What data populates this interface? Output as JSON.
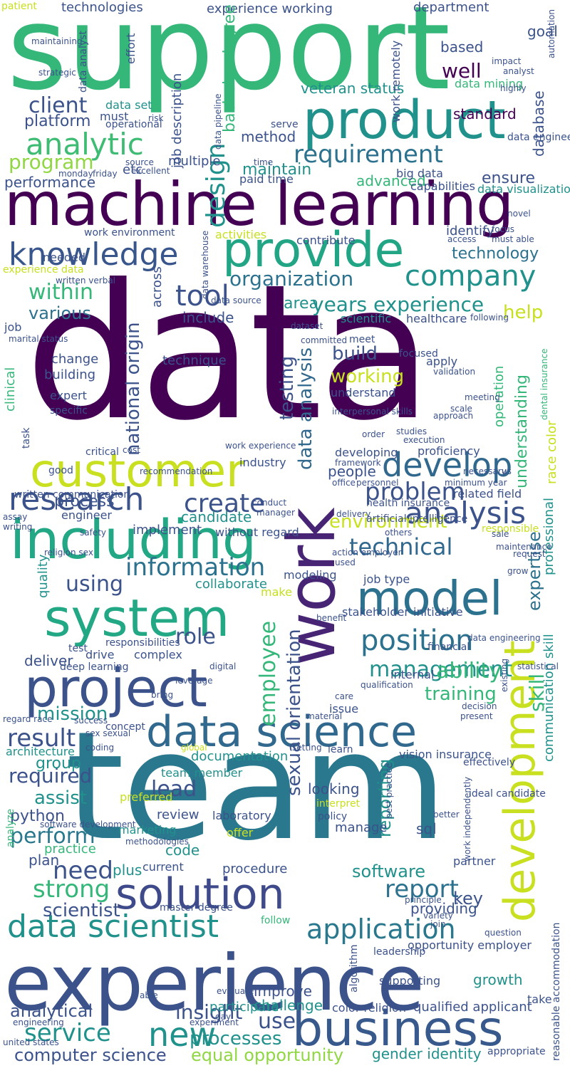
{
  "palette": {
    "dark_purple": "#440154",
    "indigo": "#3b528b",
    "blue": "#31688e",
    "teal": "#21918c",
    "green": "#35b779",
    "lime": "#90d743",
    "yellow": "#c8e020"
  },
  "words": {
    "data": "data",
    "team": "team",
    "support": "support",
    "experience": "experience",
    "machine_learning": "machine learning",
    "work": "work",
    "product": "product",
    "development": "development",
    "provide": "provide",
    "customer": "customer",
    "including": "including",
    "system": "system",
    "project": "project",
    "data_science": "data science",
    "solution": "solution",
    "business": "business",
    "knowledge": "knowledge",
    "model": "model",
    "analytic": "analytic",
    "research": "research",
    "develop": "develop",
    "company": "company",
    "analysis": "analysis",
    "data_scientist": "data scientist",
    "application": "application",
    "new": "new",
    "requirement": "requirement",
    "design": "design",
    "tool": "tool",
    "years_experience": "years experience",
    "position": "position",
    "management": "management",
    "information": "information",
    "technical": "technical",
    "result": "result",
    "strong": "strong",
    "perform": "perform",
    "need": "need",
    "report": "report",
    "service": "service",
    "computer_science": "computer science",
    "equal_opportunity": "equal opportunity",
    "processes": "processes",
    "mission": "mission",
    "lead": "lead",
    "create": "create",
    "problem": "problem",
    "environment": "environment",
    "organization": "organization",
    "program": "program",
    "client": "client",
    "platform": "platform",
    "performance": "performance",
    "within": "within",
    "various": "various",
    "technology": "technology",
    "maintain": "maintain",
    "method": "method",
    "advanced": "advanced",
    "ensure": "ensure",
    "build": "build",
    "working": "working",
    "testing": "testing",
    "data_analysis": "data analysis",
    "national_origin": "national origin",
    "sexual_orientation": "sexual orientation",
    "employee": "employee",
    "expertise": "expertise",
    "professional": "professional",
    "skill": "skill",
    "ability": "ability",
    "training": "training",
    "reporting": "reporting",
    "software": "software",
    "scientist": "scientist",
    "analytical": "analytical",
    "insight": "insight",
    "use": "use",
    "improve": "improve",
    "challenge": "challenge",
    "participate": "participate",
    "qualified_applicant": "qualified applicant",
    "gender_identity": "gender identity",
    "opportunity_employer": "opportunity employer",
    "growth": "growth",
    "key": "key",
    "providing": "providing",
    "python": "python",
    "required": "required",
    "assist": "assist",
    "group": "group",
    "architecture": "architecture",
    "deliver": "deliver",
    "role": "role",
    "quality": "quality",
    "using": "using",
    "process": "process",
    "candidate": "candidate",
    "implement": "implement",
    "collaborate": "collaborate",
    "documentation": "documentation",
    "team_member": "team member",
    "review": "review",
    "marketing": "marketing",
    "code": "code",
    "plan": "plan",
    "practice": "practice",
    "procedure": "procedure",
    "plus": "plus",
    "current": "current",
    "looking": "looking",
    "manage": "manage",
    "sql": "sql",
    "partner": "partner",
    "understanding": "understanding",
    "help": "help",
    "operation": "operation",
    "include": "include",
    "area": "area",
    "technique": "technique",
    "building": "building",
    "change": "change",
    "expert": "expert",
    "across": "across",
    "standard": "standard",
    "well": "well",
    "based": "based",
    "department": "department",
    "experience_working": "experience working",
    "technologies": "technologies",
    "patient": "patient",
    "goal": "goal",
    "veteran_status": "veteran status",
    "work_remotely": "work remotely",
    "bachelor_degree": "bachelor degree",
    "database": "database",
    "data_mining": "data mining",
    "data_set": "data set",
    "must": "must",
    "job_description": "job description",
    "etc": "etc",
    "multiple": "multiple",
    "paid_time": "paid time",
    "value": "value",
    "capabilities": "capabilities",
    "big_data": "big data",
    "data_visualization": "data visualization",
    "data_engineer": "data engineer",
    "identify": "identify",
    "contribute": "contribute",
    "needed": "needed",
    "activities": "activities",
    "work_environment": "work environment",
    "experience_data": "experience data",
    "scientific": "scientific",
    "healthcare": "healthcare",
    "field": "field",
    "dataset": "dataset",
    "committed": "committed",
    "meet": "meet",
    "focused": "focused",
    "apply": "apply",
    "understand": "understand",
    "health_insurance": "health insurance",
    "related_field": "related field",
    "industry": "industry",
    "developing": "developing",
    "people": "people",
    "proficiency": "proficiency",
    "without_regard": "without regard",
    "responsibilities": "responsibilities",
    "complex": "complex",
    "drive": "drive",
    "deep_learning": "deep learning",
    "test": "test",
    "specific": "specific",
    "clinical": "clinical",
    "job": "job",
    "task": "task",
    "good": "good",
    "critical": "critical",
    "financial": "financial",
    "internal": "internal",
    "stakeholder": "stakeholder",
    "initiative": "initiative",
    "job_type": "job type",
    "benefit": "benefit",
    "modeling": "modeling",
    "make": "make",
    "issue": "issue",
    "learn": "learn",
    "vision_insurance": "vision insurance",
    "ideal_candidate": "ideal candidate",
    "effectively": "effectively",
    "laboratory": "laboratory",
    "offer": "offer",
    "preferred": "preferred",
    "interpret": "interpret",
    "policy": "policy",
    "best_practice": "best practice",
    "master_degree": "master degree",
    "follow": "follow",
    "leadership": "leadership",
    "algorithm": "algorithm",
    "supporting": "supporting",
    "color_religion": "color religion",
    "appropriate": "appropriate",
    "reasonable_accommodation": "reasonable accommodation",
    "united_states": "united states",
    "engineering": "engineering",
    "communication_skill": "communication skill",
    "race_color": "race color",
    "data_engineering": "data engineering",
    "written_communication": "written communication",
    "artificial_intelligence": "artificial intelligence",
    "responsible": "responsible",
    "related": "related",
    "engineer": "engineer",
    "safety": "safety",
    "work_independently": "work independently",
    "software_development": "software development",
    "religion_sex": "religion sex",
    "regard_race": "regard race",
    "concept": "concept",
    "success": "success",
    "analyze": "analyze",
    "methodologies": "methodologies",
    "effort": "effort",
    "maintaining": "maintaining",
    "strategic": "strategic",
    "risk": "risk",
    "operational": "operational",
    "source": "source",
    "excellent": "excellent",
    "monday": "monday",
    "friday": "friday",
    "data_pipeline": "data pipeline",
    "serve": "serve",
    "data_analyst": "data analyst",
    "data_source": "data source",
    "data_warehouse": "data warehouse",
    "dental_insurance": "dental insurance",
    "marital_status": "marital status",
    "written_verbal": "written verbal",
    "interpersonal_skills": "interpersonal skills",
    "minimum_year": "minimum year",
    "validation": "validation",
    "execution": "execution",
    "studies": "studies",
    "scale": "scale",
    "meeting": "meeting",
    "focus": "focus",
    "must_able": "must able",
    "access": "access",
    "novel": "novel",
    "highly": "highly",
    "impact": "impact",
    "analyst": "analyst",
    "automation": "automation",
    "office": "office",
    "delivery": "delivery",
    "necessary": "necessary",
    "us": "us",
    "personnel": "personnel",
    "conduct": "conduct",
    "manager": "manager",
    "assay": "assay",
    "writing": "writing",
    "request": "request",
    "maintenance": "maintenance",
    "grow": "grow",
    "digital": "digital",
    "leverage": "leverage",
    "bring": "bring",
    "setting": "setting",
    "existing": "existing",
    "present": "present",
    "decision": "decision",
    "qualification": "qualification",
    "coding": "coding",
    "material": "material",
    "care": "care",
    "better": "better",
    "question": "question",
    "join": "join",
    "variety": "variety",
    "principle": "principle",
    "global": "global",
    "sale": "sale",
    "others": "others",
    "action_employer": "action employer",
    "used": "used",
    "sex_sexual": "sex sexual",
    "evaluate": "evaluate",
    "experiment": "experiment",
    "day": "day",
    "able": "able",
    "take": "take",
    "time": "time",
    "work_experience": "work experience",
    "recommendation": "recommendation",
    "approach": "approach",
    "order": "order",
    "framework": "framework",
    "following": "following",
    "cost": "cost",
    "statistical": "statistical"
  }
}
